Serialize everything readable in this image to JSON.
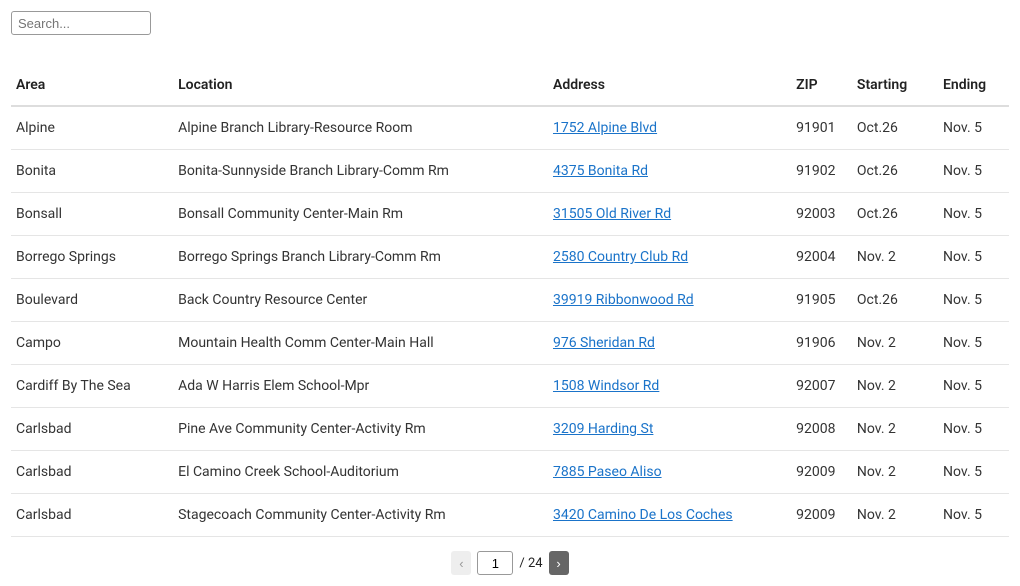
{
  "search": {
    "placeholder": "Search..."
  },
  "table": {
    "headers": {
      "area": "Area",
      "location": "Location",
      "address": "Address",
      "zip": "ZIP",
      "starting": "Starting",
      "ending": "Ending"
    },
    "rows": [
      {
        "area": "Alpine",
        "location": "Alpine Branch Library-Resource Room",
        "address": "1752 Alpine Blvd",
        "zip": "91901",
        "starting": "Oct.26",
        "ending": "Nov. 5"
      },
      {
        "area": "Bonita",
        "location": "Bonita-Sunnyside Branch Library-Comm Rm",
        "address": "4375 Bonita Rd",
        "zip": "91902",
        "starting": "Oct.26",
        "ending": "Nov. 5"
      },
      {
        "area": "Bonsall",
        "location": "Bonsall Community Center-Main Rm",
        "address": "31505 Old River Rd",
        "zip": "92003",
        "starting": "Oct.26",
        "ending": "Nov. 5"
      },
      {
        "area": "Borrego Springs",
        "location": "Borrego Springs Branch Library-Comm Rm",
        "address": "2580 Country Club Rd",
        "zip": "92004",
        "starting": "Nov. 2",
        "ending": "Nov. 5"
      },
      {
        "area": "Boulevard",
        "location": "Back Country Resource Center",
        "address": "39919 Ribbonwood Rd",
        "zip": "91905",
        "starting": "Oct.26",
        "ending": "Nov. 5"
      },
      {
        "area": "Campo",
        "location": "Mountain Health Comm Center-Main Hall",
        "address": "976 Sheridan Rd",
        "zip": "91906",
        "starting": "Nov. 2",
        "ending": "Nov. 5"
      },
      {
        "area": "Cardiff By The Sea",
        "location": "Ada W Harris Elem School-Mpr",
        "address": "1508 Windsor Rd",
        "zip": "92007",
        "starting": "Nov. 2",
        "ending": "Nov. 5"
      },
      {
        "area": "Carlsbad",
        "location": "Pine Ave Community Center-Activity Rm",
        "address": "3209 Harding St",
        "zip": "92008",
        "starting": "Nov. 2",
        "ending": "Nov. 5"
      },
      {
        "area": "Carlsbad",
        "location": "El Camino Creek School-Auditorium",
        "address": "7885 Paseo Aliso",
        "zip": "92009",
        "starting": "Nov. 2",
        "ending": "Nov. 5"
      },
      {
        "area": "Carlsbad",
        "location": "Stagecoach Community Center-Activity Rm",
        "address": "3420 Camino De Los Coches",
        "zip": "92009",
        "starting": "Nov. 2",
        "ending": "Nov. 5"
      }
    ]
  },
  "pagination": {
    "prev": "‹",
    "next": "›",
    "current": "1",
    "total": "/ 24"
  },
  "styling": {
    "link_color": "#1a73c9",
    "border_color": "#e5e5e5",
    "header_border": "#dddddd",
    "text_color": "#333333",
    "background": "#ffffff",
    "font_size_cell": 14,
    "font_size_header": 14
  }
}
